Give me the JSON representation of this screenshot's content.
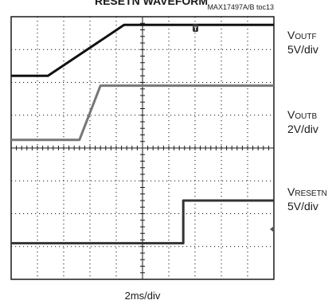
{
  "chart_data": {
    "type": "line",
    "title": "RESETN WAVEFORM",
    "figure_code": "MAX17497A/B toc13",
    "xlabel": "2ms/div",
    "grid": true,
    "divisions": {
      "x": 10,
      "y": 8
    },
    "xlim": [
      0,
      10
    ],
    "ylim": [
      0,
      8
    ],
    "trigger_marker": "T",
    "series": [
      {
        "name": "V",
        "subscript": "OUTF",
        "scale": "5V/div",
        "color": "#111111",
        "x": [
          0,
          1.4,
          4.3,
          10
        ],
        "y": [
          6.2,
          6.2,
          7.75,
          7.75
        ]
      },
      {
        "name": "V",
        "subscript": "OUTB",
        "scale": "2V/div",
        "color": "#777777",
        "x": [
          0,
          2.6,
          3.4,
          10
        ],
        "y": [
          4.25,
          4.25,
          5.9,
          5.9
        ]
      },
      {
        "name": "V",
        "subscript": "RESETN",
        "scale": "5V/div",
        "color": "#333333",
        "x": [
          0,
          6.55,
          6.55,
          10
        ],
        "y": [
          1.1,
          1.1,
          2.4,
          2.4
        ]
      }
    ]
  }
}
